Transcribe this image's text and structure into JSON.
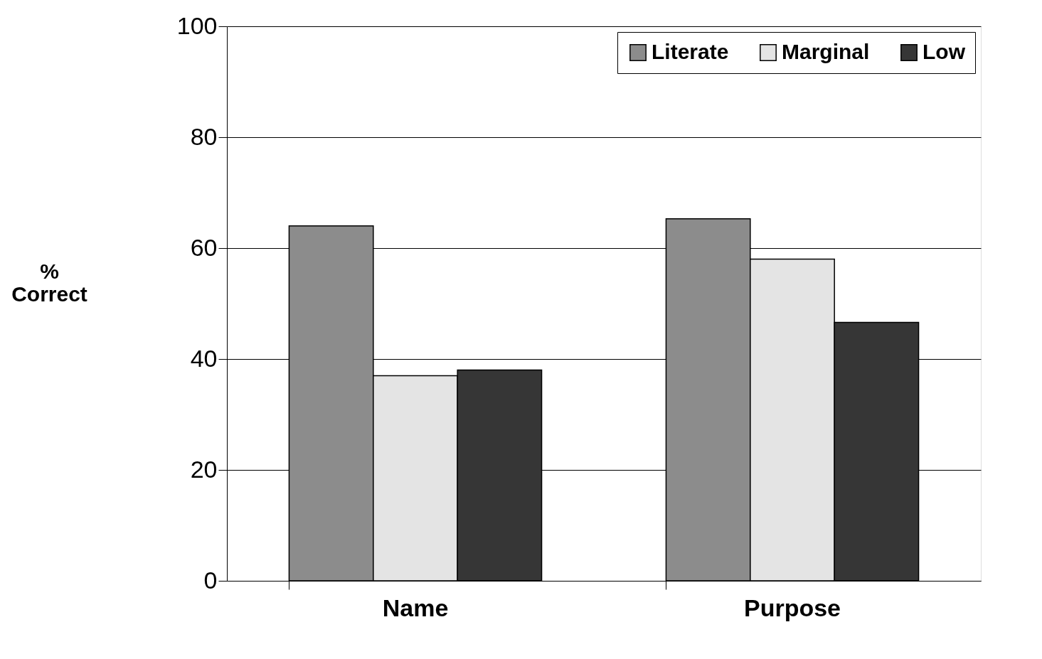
{
  "chart_data": {
    "type": "bar",
    "categories": [
      "Name",
      "Purpose"
    ],
    "ylabel": "%\nCorrect",
    "ylim": [
      0,
      100
    ],
    "yticks": [
      0,
      20,
      40,
      60,
      80,
      100
    ],
    "grid": "y",
    "legend": "top right",
    "series": [
      {
        "name": "Literate",
        "color": "#8c8c8c",
        "values": [
          64,
          65.3
        ]
      },
      {
        "name": "Marginal",
        "color": "#e4e4e4",
        "values": [
          37,
          58
        ]
      },
      {
        "name": "Low",
        "color": "#363636",
        "values": [
          38,
          46.6
        ]
      }
    ]
  }
}
